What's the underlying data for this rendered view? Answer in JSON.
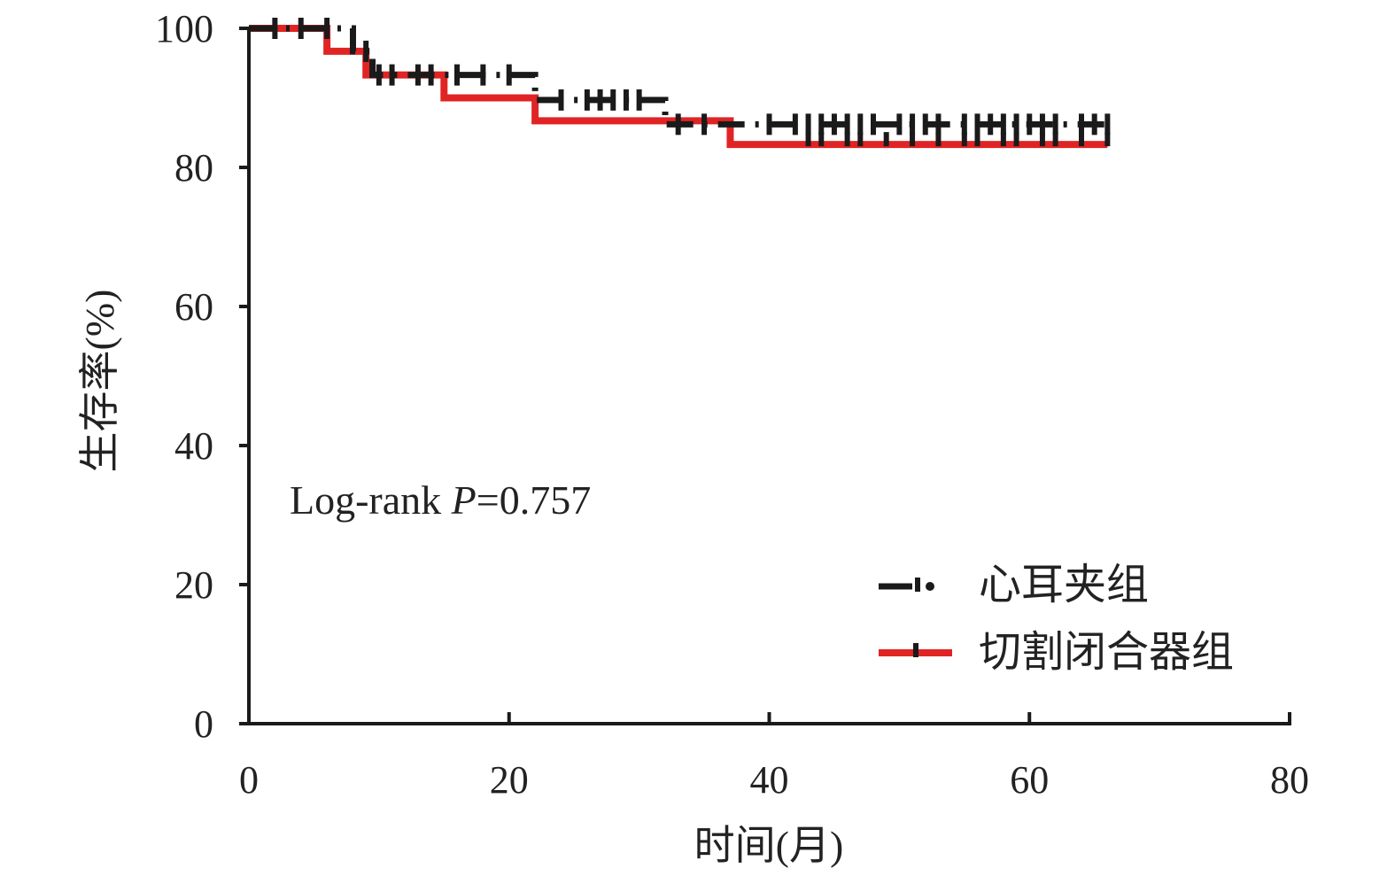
{
  "chart_data": {
    "type": "line",
    "subtype": "kaplan-meier",
    "xlabel": "时间(月)",
    "ylabel": "生存率(%)",
    "xlim": [
      0,
      80
    ],
    "ylim": [
      0,
      100
    ],
    "xticks": [
      0,
      20,
      40,
      60,
      80
    ],
    "yticks": [
      0,
      20,
      40,
      60,
      80,
      100
    ],
    "grid": false,
    "legend_position": "bottom-right",
    "annotation": {
      "prefix": "Log-rank ",
      "p_symbol": "P",
      "suffix": "=0.757"
    },
    "series": [
      {
        "name": "心耳夹组",
        "color": "#1a1a1a",
        "style": "dash-dot",
        "steps": [
          [
            0,
            100
          ],
          [
            8,
            96.7
          ],
          [
            9.5,
            93.3
          ],
          [
            22,
            89.7
          ],
          [
            32,
            86.2
          ],
          [
            66,
            86.2
          ]
        ],
        "censored": [
          2,
          4,
          6,
          9,
          10,
          11,
          13,
          14,
          16,
          18,
          20,
          24,
          26,
          27,
          28,
          29,
          30,
          33,
          35,
          40,
          42,
          43,
          44,
          45,
          46,
          47,
          48,
          50,
          51,
          52,
          53,
          55,
          56,
          57,
          58,
          59,
          60,
          61,
          62,
          64,
          65,
          66
        ]
      },
      {
        "name": "切割闭合器组",
        "color": "#e02424",
        "style": "solid",
        "steps": [
          [
            0,
            100
          ],
          [
            6,
            96.7
          ],
          [
            9,
            93.3
          ],
          [
            15,
            90.0
          ],
          [
            22,
            86.7
          ],
          [
            37,
            83.3
          ],
          [
            66,
            83.3
          ]
        ],
        "censored": [
          43,
          44,
          46,
          47,
          49,
          51,
          53,
          55,
          56,
          58,
          59,
          61,
          62,
          64,
          66
        ]
      }
    ]
  }
}
